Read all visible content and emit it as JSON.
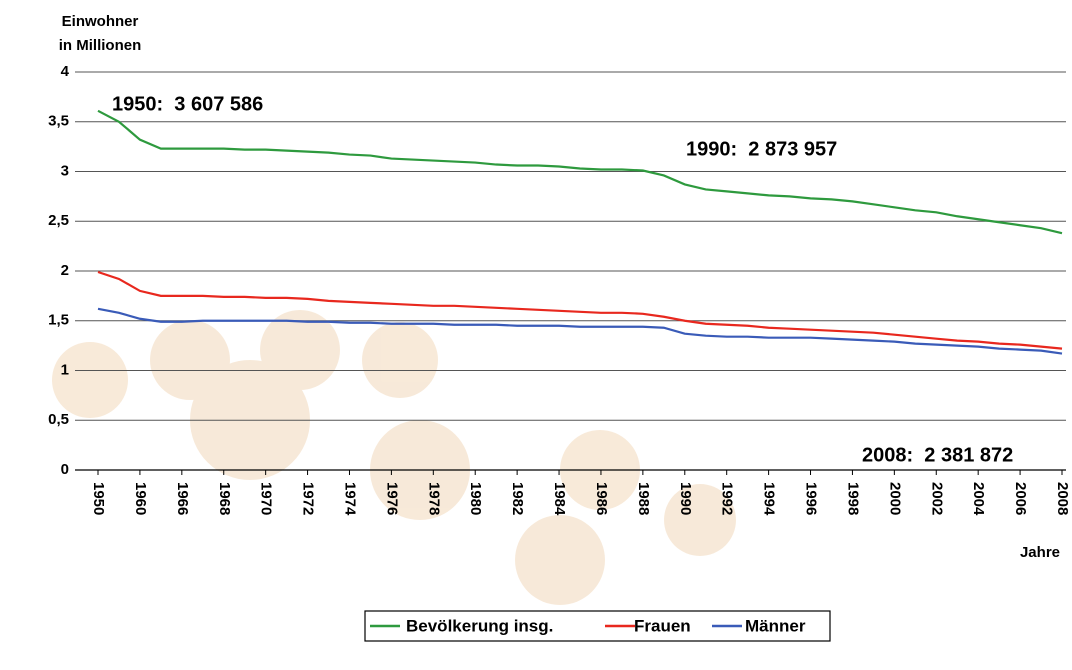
{
  "chart_data": {
    "type": "line",
    "y_label": [
      "Einwohner",
      "in Millionen"
    ],
    "x_label": "Jahre",
    "categories": [
      "1950",
      null,
      "1960",
      null,
      "1966",
      null,
      "1968",
      null,
      "1970",
      null,
      "1972",
      null,
      "1974",
      null,
      "1976",
      null,
      "1978",
      null,
      "1980",
      null,
      "1982",
      null,
      "1984",
      null,
      "1986",
      null,
      "1988",
      null,
      "1990",
      null,
      "1992",
      null,
      "1994",
      null,
      "1996",
      null,
      "1998",
      null,
      "2000",
      null,
      "2002",
      null,
      "2004",
      null,
      "2006",
      null,
      "2008"
    ],
    "series": [
      {
        "name": "Bevölkerung insg.",
        "color": "#2e9a3e",
        "values": [
          3.61,
          3.5,
          3.32,
          3.23,
          3.23,
          3.23,
          3.23,
          3.22,
          3.22,
          3.21,
          3.2,
          3.19,
          3.17,
          3.16,
          3.13,
          3.12,
          3.11,
          3.1,
          3.09,
          3.07,
          3.06,
          3.06,
          3.05,
          3.03,
          3.02,
          3.02,
          3.01,
          2.96,
          2.87,
          2.82,
          2.8,
          2.78,
          2.76,
          2.75,
          2.73,
          2.72,
          2.7,
          2.67,
          2.64,
          2.61,
          2.59,
          2.55,
          2.52,
          2.49,
          2.46,
          2.43,
          2.38
        ]
      },
      {
        "name": "Frauen",
        "color": "#e8281e",
        "values": [
          1.99,
          1.92,
          1.8,
          1.75,
          1.75,
          1.75,
          1.74,
          1.74,
          1.73,
          1.73,
          1.72,
          1.7,
          1.69,
          1.68,
          1.67,
          1.66,
          1.65,
          1.65,
          1.64,
          1.63,
          1.62,
          1.61,
          1.6,
          1.59,
          1.58,
          1.58,
          1.57,
          1.54,
          1.5,
          1.47,
          1.46,
          1.45,
          1.43,
          1.42,
          1.41,
          1.4,
          1.39,
          1.38,
          1.36,
          1.34,
          1.32,
          1.3,
          1.29,
          1.27,
          1.26,
          1.24,
          1.22
        ]
      },
      {
        "name": "Männer",
        "color": "#3a5bb8",
        "values": [
          1.62,
          1.58,
          1.52,
          1.49,
          1.49,
          1.5,
          1.5,
          1.5,
          1.5,
          1.5,
          1.49,
          1.49,
          1.48,
          1.48,
          1.47,
          1.47,
          1.47,
          1.46,
          1.46,
          1.46,
          1.45,
          1.45,
          1.45,
          1.44,
          1.44,
          1.44,
          1.44,
          1.43,
          1.37,
          1.35,
          1.34,
          1.34,
          1.33,
          1.33,
          1.33,
          1.32,
          1.31,
          1.3,
          1.29,
          1.27,
          1.26,
          1.25,
          1.24,
          1.22,
          1.21,
          1.2,
          1.17
        ]
      }
    ],
    "ylim": [
      0,
      4
    ],
    "yticks": [
      0,
      {
        "value": 0.5,
        "label": "0,5"
      },
      1,
      {
        "value": 1.5,
        "label": "1,5"
      },
      2,
      {
        "value": 2.5,
        "label": "2,5"
      },
      3,
      {
        "value": 3.5,
        "label": "3,5"
      },
      4
    ],
    "grid": true,
    "legend": "bottom",
    "annotations": [
      "1950:  3 607 586",
      "1990:  2 873 957",
      "2008:  2 381 872"
    ],
    "annotation_color": "#3a7a2a"
  }
}
